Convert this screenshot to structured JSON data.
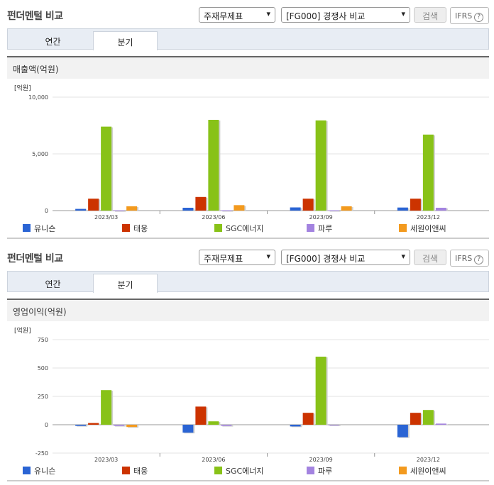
{
  "panels": [
    {
      "title": "펀더멘털 비교",
      "select1": "주재무제표",
      "select2": "[FG000] 경쟁사 비교",
      "search_label": "검색",
      "ifrs_label": "IFRS",
      "help_icon": "?",
      "tabs": [
        "연간",
        "분기"
      ],
      "active_tab": 1,
      "section_title": "매출액(억원)"
    },
    {
      "title": "펀더멘털 비교",
      "select1": "주재무제표",
      "select2": "[FG000] 경쟁사 비교",
      "search_label": "검색",
      "ifrs_label": "IFRS",
      "help_icon": "?",
      "tabs": [
        "연간",
        "분기"
      ],
      "active_tab": 1,
      "section_title": "영업이익(억원)"
    }
  ],
  "colors": {
    "유니슨": "#2a64d4",
    "태웅": "#cc3300",
    "SGC에너지": "#88c218",
    "파루": "#a383e0",
    "세원이앤씨": "#f39a1e"
  },
  "chart_data": [
    {
      "type": "bar",
      "title": "매출액(억원)",
      "unit_label": "[억원]",
      "categories": [
        "2023/03",
        "2023/06",
        "2023/09",
        "2023/12"
      ],
      "ylim": [
        0,
        10000
      ],
      "yticks": [
        0,
        5000,
        10000
      ],
      "ytick_labels": [
        "0",
        "5,000",
        "10,000"
      ],
      "legend_position": "bottom",
      "series": [
        {
          "name": "유니슨",
          "values": [
            150,
            250,
            280,
            270
          ]
        },
        {
          "name": "태웅",
          "values": [
            1050,
            1200,
            1050,
            1050
          ]
        },
        {
          "name": "SGC에너지",
          "values": [
            7400,
            8000,
            7950,
            6700
          ]
        },
        {
          "name": "파루",
          "values": [
            20,
            30,
            30,
            250
          ]
        },
        {
          "name": "세원이앤씨",
          "values": [
            380,
            480,
            380,
            0
          ]
        }
      ]
    },
    {
      "type": "bar",
      "title": "영업이익(억원)",
      "unit_label": "[억원]",
      "categories": [
        "2023/03",
        "2023/06",
        "2023/09",
        "2023/12"
      ],
      "ylim": [
        -250,
        750
      ],
      "yticks": [
        -250,
        0,
        250,
        500,
        750
      ],
      "ytick_labels": [
        "-250",
        "0",
        "250",
        "500",
        "750"
      ],
      "legend_position": "bottom",
      "series": [
        {
          "name": "유니슨",
          "values": [
            -10,
            -70,
            -15,
            -110
          ]
        },
        {
          "name": "태웅",
          "values": [
            15,
            160,
            105,
            105
          ]
        },
        {
          "name": "SGC에너지",
          "values": [
            305,
            30,
            600,
            130
          ]
        },
        {
          "name": "파루",
          "values": [
            -10,
            -10,
            -5,
            10
          ]
        },
        {
          "name": "세원이앤씨",
          "values": [
            -20,
            0,
            0,
            0
          ]
        }
      ]
    }
  ]
}
